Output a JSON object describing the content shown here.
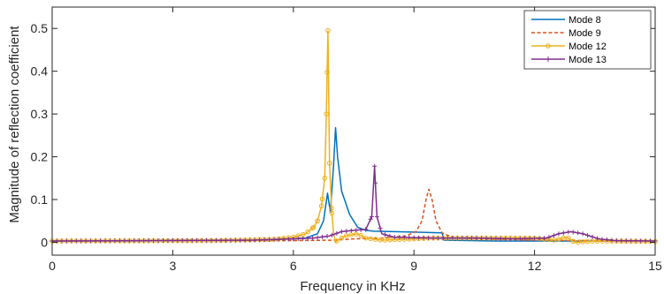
{
  "chart_data": {
    "type": "line",
    "title": "",
    "xlabel": "Frequency in KHz",
    "ylabel": "Magnitude of reflection coefficient",
    "xlim": [
      0,
      15
    ],
    "ylim": [
      -0.03,
      0.55
    ],
    "xticks": [
      0,
      3,
      6,
      9,
      12,
      15
    ],
    "xtick_labels": [
      "0",
      "3",
      "6",
      "9",
      "12",
      "15"
    ],
    "yticks": [
      0,
      0.1,
      0.2,
      0.3,
      0.4,
      0.5
    ],
    "ytick_labels": [
      "0",
      "0.1",
      "0.2",
      "0.3",
      "0.4",
      "0.5"
    ],
    "grid": false,
    "legend_position": "top-right",
    "series": [
      {
        "name": "Mode 8",
        "color": "#0072BD",
        "style": "solid",
        "marker": "none",
        "points": [
          [
            0,
            0.003
          ],
          [
            4,
            0.004
          ],
          [
            5.5,
            0.006
          ],
          [
            6.3,
            0.01
          ],
          [
            6.6,
            0.02
          ],
          [
            6.75,
            0.05
          ],
          [
            6.85,
            0.115
          ],
          [
            6.92,
            0.07
          ],
          [
            7.0,
            0.18
          ],
          [
            7.05,
            0.268
          ],
          [
            7.1,
            0.2
          ],
          [
            7.2,
            0.12
          ],
          [
            7.4,
            0.065
          ],
          [
            7.6,
            0.035
          ],
          [
            7.8,
            0.028
          ],
          [
            8.0,
            0.026
          ],
          [
            9.0,
            0.024
          ],
          [
            9.7,
            0.022
          ],
          [
            9.75,
            0.005
          ],
          [
            11,
            0.003
          ],
          [
            15,
            0.003
          ]
        ]
      },
      {
        "name": "Mode 9",
        "color": "#D95319",
        "style": "dashed",
        "marker": "none",
        "points": [
          [
            0,
            0.003
          ],
          [
            6,
            0.004
          ],
          [
            7.0,
            0.005
          ],
          [
            7.5,
            0.008
          ],
          [
            8.2,
            0.01
          ],
          [
            8.8,
            0.015
          ],
          [
            9.05,
            0.025
          ],
          [
            9.2,
            0.05
          ],
          [
            9.3,
            0.1
          ],
          [
            9.37,
            0.124
          ],
          [
            9.45,
            0.1
          ],
          [
            9.55,
            0.05
          ],
          [
            9.7,
            0.022
          ],
          [
            10,
            0.01
          ],
          [
            11,
            0.007
          ],
          [
            12,
            0.005
          ],
          [
            15,
            0.003
          ]
        ]
      },
      {
        "name": "Mode 12",
        "color": "#EDB120",
        "style": "solid",
        "marker": "circle",
        "points": [
          [
            0,
            0.003
          ],
          [
            4,
            0.004
          ],
          [
            5.5,
            0.007
          ],
          [
            6.0,
            0.012
          ],
          [
            6.3,
            0.02
          ],
          [
            6.5,
            0.035
          ],
          [
            6.6,
            0.05
          ],
          [
            6.7,
            0.085
          ],
          [
            6.78,
            0.15
          ],
          [
            6.82,
            0.3
          ],
          [
            6.86,
            0.495
          ],
          [
            6.9,
            0.185
          ],
          [
            6.95,
            0.08
          ],
          [
            7.0,
            0.02
          ],
          [
            7.05,
            0.0
          ],
          [
            7.1,
            0.005
          ],
          [
            7.3,
            0.015
          ],
          [
            7.6,
            0.02
          ],
          [
            7.8,
            0.01
          ],
          [
            8.2,
            0.005
          ],
          [
            9.5,
            0.01
          ],
          [
            12,
            0.01
          ],
          [
            12.5,
            0.005
          ],
          [
            12.8,
            0.012
          ],
          [
            13.0,
            0.0
          ],
          [
            13.5,
            0.003
          ],
          [
            15,
            0.002
          ]
        ]
      },
      {
        "name": "Mode 13",
        "color": "#7E2F8E",
        "style": "solid",
        "marker": "plus",
        "points": [
          [
            0,
            0.003
          ],
          [
            5,
            0.005
          ],
          [
            6.0,
            0.008
          ],
          [
            6.5,
            0.01
          ],
          [
            6.9,
            0.015
          ],
          [
            7.2,
            0.025
          ],
          [
            7.5,
            0.028
          ],
          [
            7.8,
            0.03
          ],
          [
            7.95,
            0.06
          ],
          [
            8.02,
            0.178
          ],
          [
            8.08,
            0.06
          ],
          [
            8.2,
            0.02
          ],
          [
            8.5,
            0.012
          ],
          [
            9.5,
            0.01
          ],
          [
            10.5,
            0.01
          ],
          [
            11.5,
            0.008
          ],
          [
            12.3,
            0.01
          ],
          [
            12.6,
            0.02
          ],
          [
            12.9,
            0.025
          ],
          [
            13.2,
            0.02
          ],
          [
            13.6,
            0.008
          ],
          [
            14,
            0.004
          ],
          [
            15,
            0.003
          ]
        ]
      }
    ]
  }
}
